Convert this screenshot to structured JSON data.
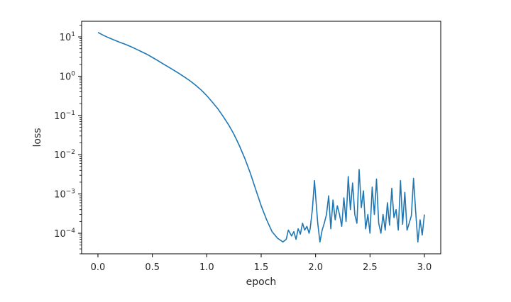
{
  "chart_data": {
    "type": "line",
    "title": "",
    "xlabel": "epoch",
    "ylabel": "loss",
    "xlim": [
      -0.15,
      3.15
    ],
    "ylim": [
      3e-05,
      25
    ],
    "yscale": "log",
    "grid": false,
    "legend": "none",
    "x_ticks": [
      {
        "value": 0.0,
        "label": "0.0"
      },
      {
        "value": 0.5,
        "label": "0.5"
      },
      {
        "value": 1.0,
        "label": "1.0"
      },
      {
        "value": 1.5,
        "label": "1.5"
      },
      {
        "value": 2.0,
        "label": "2.0"
      },
      {
        "value": 2.5,
        "label": "2.5"
      },
      {
        "value": 3.0,
        "label": "3.0"
      }
    ],
    "y_ticks": [
      {
        "value": 10,
        "base": "10",
        "exp": "1"
      },
      {
        "value": 1,
        "base": "10",
        "exp": "0"
      },
      {
        "value": 0.1,
        "base": "10",
        "exp": "−1"
      },
      {
        "value": 0.01,
        "base": "10",
        "exp": "−2"
      },
      {
        "value": 0.001,
        "base": "10",
        "exp": "−3"
      },
      {
        "value": 0.0001,
        "base": "10",
        "exp": "−4"
      }
    ],
    "series": [
      {
        "color": "#1f77b4",
        "x": [
          0.0,
          0.05,
          0.1,
          0.15,
          0.2,
          0.25,
          0.3,
          0.35,
          0.4,
          0.45,
          0.5,
          0.55,
          0.6,
          0.65,
          0.7,
          0.75,
          0.8,
          0.85,
          0.9,
          0.95,
          1.0,
          1.05,
          1.1,
          1.15,
          1.2,
          1.25,
          1.3,
          1.35,
          1.4,
          1.45,
          1.5,
          1.55,
          1.6,
          1.65,
          1.7,
          1.73,
          1.75,
          1.78,
          1.8,
          1.82,
          1.84,
          1.86,
          1.88,
          1.9,
          1.92,
          1.94,
          1.95,
          1.97,
          1.99,
          2.0,
          2.02,
          2.04,
          2.06,
          2.08,
          2.1,
          2.12,
          2.14,
          2.16,
          2.18,
          2.2,
          2.22,
          2.24,
          2.26,
          2.28,
          2.3,
          2.32,
          2.34,
          2.36,
          2.38,
          2.4,
          2.42,
          2.44,
          2.46,
          2.48,
          2.5,
          2.52,
          2.54,
          2.56,
          2.58,
          2.6,
          2.62,
          2.64,
          2.66,
          2.68,
          2.7,
          2.72,
          2.74,
          2.76,
          2.78,
          2.8,
          2.82,
          2.84,
          2.86,
          2.88,
          2.9,
          2.92,
          2.94,
          2.96,
          2.98,
          3.0
        ],
        "y": [
          13,
          11,
          9.5,
          8.3,
          7.3,
          6.5,
          5.7,
          4.9,
          4.2,
          3.6,
          3.0,
          2.5,
          2.05,
          1.7,
          1.4,
          1.15,
          0.93,
          0.75,
          0.58,
          0.44,
          0.32,
          0.22,
          0.15,
          0.095,
          0.058,
          0.033,
          0.017,
          0.008,
          0.0034,
          0.0013,
          0.0005,
          0.00022,
          0.00011,
          7.5e-05,
          6e-05,
          7e-05,
          0.00012,
          8.5e-05,
          0.00011,
          7e-05,
          0.00013,
          9.5e-05,
          0.00018,
          0.00012,
          0.00015,
          0.0001,
          0.00013,
          0.0004,
          0.0022,
          0.0009,
          0.00018,
          6e-05,
          0.00012,
          0.00018,
          0.0003,
          0.0009,
          0.00013,
          0.0007,
          0.00022,
          0.0005,
          0.0003,
          0.00015,
          0.0008,
          0.0002,
          0.0028,
          0.0004,
          0.0019,
          0.0003,
          0.00018,
          0.0042,
          0.00045,
          0.0012,
          0.00013,
          0.0003,
          0.0001,
          0.0015,
          0.0003,
          0.0024,
          0.00018,
          0.0001,
          0.0003,
          0.00012,
          0.0006,
          0.00016,
          0.0014,
          0.00025,
          0.0004,
          0.00012,
          0.0022,
          0.00017,
          0.0011,
          0.00012,
          0.00018,
          0.00028,
          0.0025,
          0.00035,
          6e-05,
          0.00022,
          9e-05,
          0.0003
        ]
      }
    ]
  }
}
